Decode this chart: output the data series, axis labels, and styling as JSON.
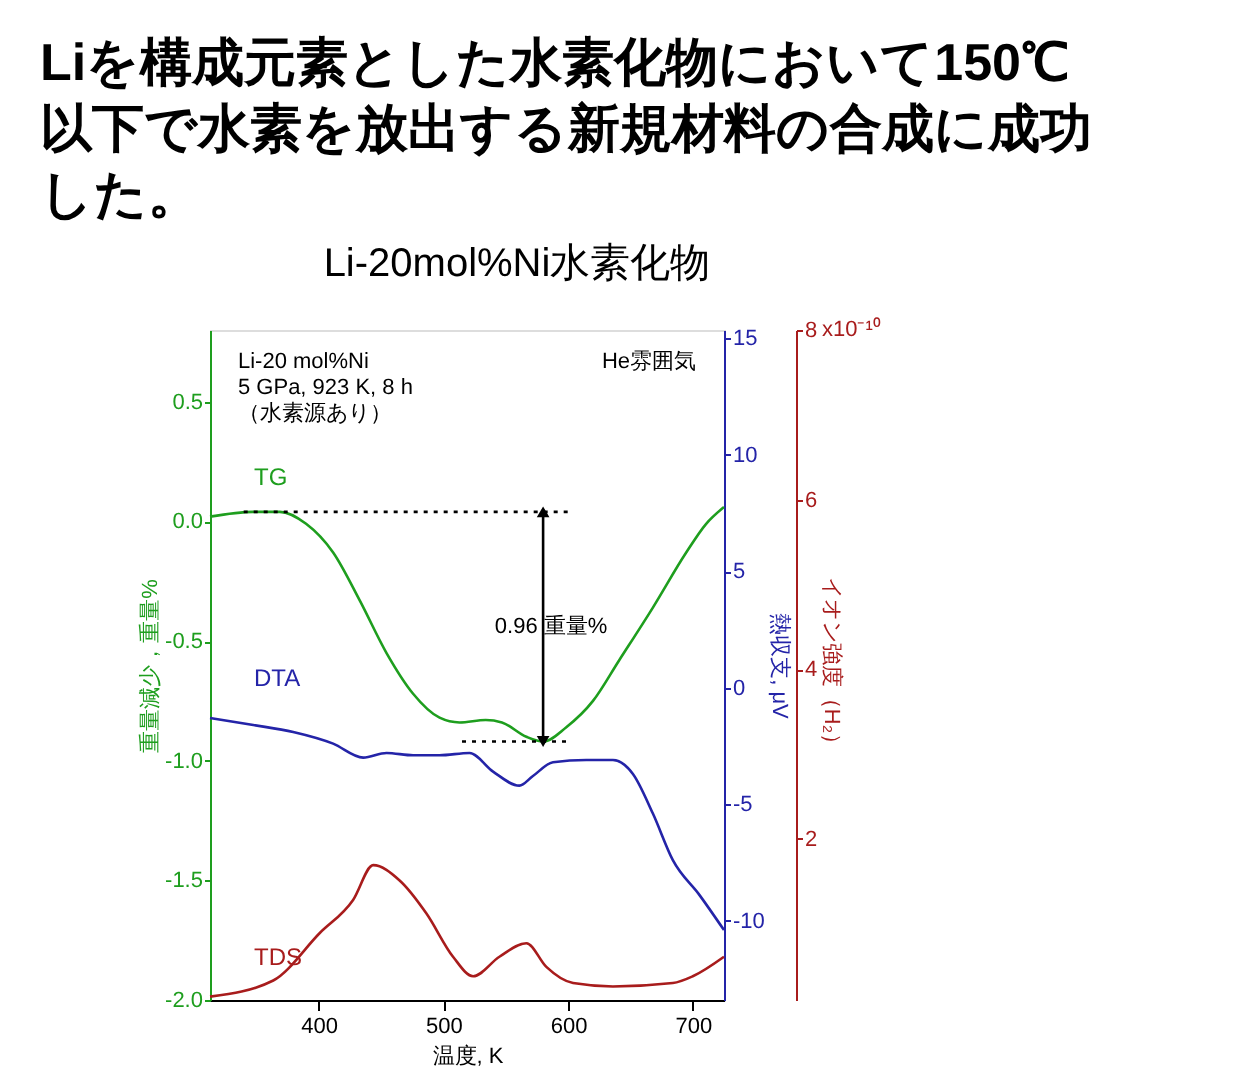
{
  "chart_data": {
    "type": "line",
    "title": "Liを構成元素とした水素化物において150℃以下で水素を放出する新規材料の合成に成功した。",
    "subtitle": "Li-20mol%Ni水素化物",
    "xlabel": "温度, K",
    "ylabel": "重量減少，重量%",
    "y2label": "熱収支, μV",
    "y3label": "イオン強度（H₂）",
    "xlim": [
      313,
      725
    ],
    "xticks": [
      400,
      500,
      600,
      700
    ],
    "ylim": [
      -2.0,
      0.8
    ],
    "yticks": [
      {
        "value": -2,
        "label": "-2.0"
      },
      -1.5,
      {
        "value": -1,
        "label": "-1.0"
      },
      -0.5,
      {
        "value": 0,
        "label": "0.0"
      },
      0.5
    ],
    "y2lim": [
      -13.4,
      15.35
    ],
    "y2ticks": [
      -10,
      -5,
      0,
      5,
      10,
      15
    ],
    "y3lim": [
      0.1,
      8
    ],
    "y3ticks": [
      2,
      4,
      6,
      8
    ],
    "grid": false,
    "marker": "none",
    "line_style": "solid",
    "series": [
      {
        "name": "TG",
        "color": "#1e9e1e",
        "x": [
          313,
          347.7,
          369,
          390,
          411.7,
          433,
          454.5,
          475.8,
          497,
          513,
          534,
          547,
          566.6,
          580,
          598.6,
          620,
          641,
          668,
          694.7,
          710.7,
          725
        ],
        "values": [
          0.02,
          0.04,
          0.04,
          -0.01,
          -0.13,
          -0.33,
          -0.55,
          -0.72,
          -0.82,
          -0.84,
          -0.83,
          -0.84,
          -0.9,
          -0.92,
          -0.86,
          -0.75,
          -0.58,
          -0.36,
          -0.13,
          -0.01,
          0.06
        ]
      },
      {
        "name": "DTA",
        "color": "#2424a8",
        "axis": "y2",
        "x": [
          313,
          347.7,
          379.7,
          411.7,
          435.8,
          454.5,
          475.8,
          497,
          521,
          539.9,
          561,
          571.6,
          587.9,
          614.6,
          636,
          652,
          668,
          684,
          705.4,
          725
        ],
        "values": [
          -1.3,
          -1.6,
          -1.9,
          -2.4,
          -3.0,
          -2.8,
          -2.9,
          -2.9,
          -2.8,
          -3.6,
          -4.2,
          -3.8,
          -3.2,
          -3.1,
          -3.1,
          -3.7,
          -5.4,
          -7.4,
          -8.9,
          -10.4
        ]
      },
      {
        "name": "TDS",
        "color": "#a81c1c",
        "axis": "y3",
        "x": [
          313,
          363.7,
          401,
          427.7,
          443.8,
          465,
          486.5,
          507.8,
          523.9,
          545,
          566.6,
          582.6,
          604,
          636,
          684,
          700,
          725
        ],
        "values": [
          0.14,
          0.33,
          0.89,
          1.28,
          1.69,
          1.51,
          1.12,
          0.61,
          0.38,
          0.61,
          0.77,
          0.49,
          0.3,
          0.26,
          0.3,
          0.38,
          0.61
        ]
      },
      {
        "type": "line",
        "color": "#000000",
        "line_style": "dotted",
        "x": [
          340,
          600
        ],
        "values": [
          0.04,
          0.04
        ]
      },
      {
        "type": "line",
        "color": "#000000",
        "line_style": "dotted",
        "x": [
          515,
          600
        ],
        "values": [
          -0.92,
          -0.92
        ]
      },
      {
        "type": "line",
        "color": "#000000",
        "marker": "triangle",
        "x": [
          580,
          580
        ],
        "values": [
          0.04,
          -0.92
        ]
      }
    ],
    "annotations": [
      "Li-20 mol%Ni",
      "5 GPa, 923 K, 8 h",
      "（水素源あり）",
      "He雰囲気",
      "x10⁻¹⁰",
      {
        "text": "0.96 重量%",
        "x": 580,
        "y": -0.44
      }
    ]
  }
}
